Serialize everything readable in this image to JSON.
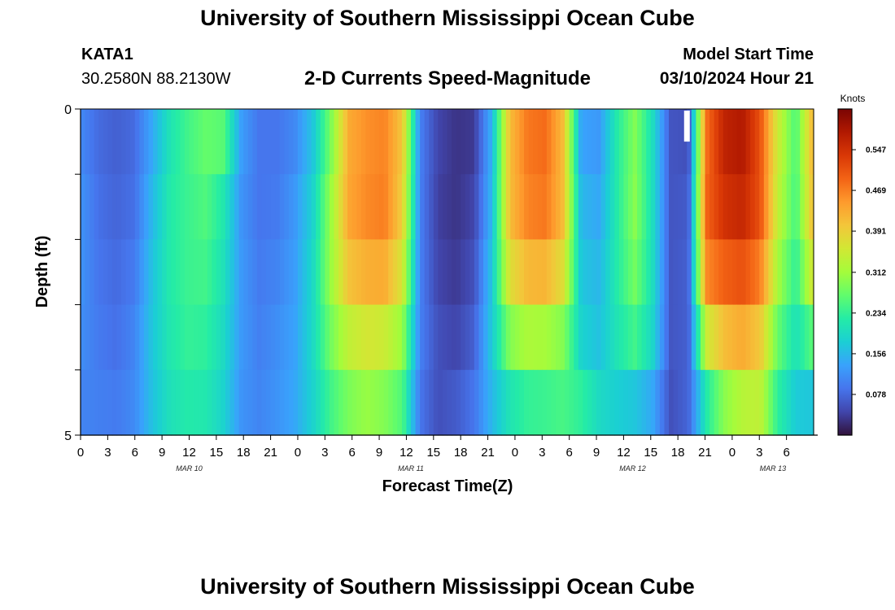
{
  "header": {
    "title": "University of Southern Mississippi Ocean Cube",
    "station": "KATA1",
    "coords": "30.2580N  88.2130W",
    "subtitle": "2-D Currents Speed-Magnitude",
    "start_label": "Model Start Time",
    "start_value": "03/10/2024 Hour 21"
  },
  "footer": {
    "title": "University of Southern Mississippi Ocean Cube"
  },
  "chart_data": {
    "type": "heatmap",
    "title": "2-D Currents Speed-Magnitude",
    "xlabel": "Forecast Time(Z)",
    "ylabel": "Depth (ft)",
    "colorbar_label": "Knots",
    "colorbar_ticks": [
      "0.547",
      "0.469",
      "0.391",
      "0.312",
      "0.234",
      "0.156",
      "0.078"
    ],
    "colorbar_tick_values": [
      0.547,
      0.469,
      0.391,
      0.312,
      0.234,
      0.156,
      0.078
    ],
    "colorbar_range": [
      0.0,
      0.625
    ],
    "colorscale": [
      "#30123b",
      "#4145ab",
      "#4675ed",
      "#39a2fc",
      "#1bcfd4",
      "#24eca6",
      "#61fc6c",
      "#a4fc3b",
      "#d1e834",
      "#f3c63a",
      "#fe9b2d",
      "#f36315",
      "#d93806",
      "#b11901",
      "#7a0403"
    ],
    "x_hours_range": [
      0,
      81
    ],
    "x_ticks": [
      "0",
      "3",
      "6",
      "9",
      "12",
      "15",
      "18",
      "21",
      "0",
      "3",
      "6",
      "9",
      "12",
      "15",
      "18",
      "21",
      "0",
      "3",
      "6",
      "9",
      "12",
      "15",
      "18",
      "21",
      "0",
      "3",
      "6"
    ],
    "date_labels": [
      {
        "label": "MAR 10",
        "hour": 12
      },
      {
        "label": "MAR 11",
        "hour": 36.5
      },
      {
        "label": "MAR 12",
        "hour": 61
      },
      {
        "label": "MAR 13",
        "hour": 76.5
      }
    ],
    "y_ticks": [
      "0",
      "",
      "",
      "",
      "",
      "5"
    ],
    "ylim": [
      0,
      5
    ],
    "depth_rows": 5,
    "missing_cells": [
      {
        "hour": 67,
        "depth_range": [
          0,
          0.5
        ]
      }
    ],
    "values": [
      [
        0.1,
        0.08,
        0.07,
        0.08,
        0.13,
        0.2,
        0.25,
        0.28,
        0.3,
        0.14,
        0.09,
        0.09,
        0.1,
        0.16,
        0.27,
        0.42,
        0.44,
        0.45,
        0.4,
        0.1,
        0.05,
        0.03,
        0.03,
        0.15,
        0.4,
        0.47,
        0.48,
        0.4,
        0.12,
        0.12,
        0.22,
        0.28,
        0.2,
        0.06,
        0.05,
        0.46,
        0.56,
        0.58,
        0.5,
        0.35,
        0.25,
        0.42
      ],
      [
        0.12,
        0.08,
        0.07,
        0.08,
        0.15,
        0.22,
        0.24,
        0.26,
        0.22,
        0.12,
        0.09,
        0.09,
        0.12,
        0.18,
        0.3,
        0.44,
        0.47,
        0.48,
        0.4,
        0.1,
        0.04,
        0.03,
        0.04,
        0.15,
        0.42,
        0.48,
        0.49,
        0.42,
        0.15,
        0.13,
        0.22,
        0.3,
        0.2,
        0.06,
        0.06,
        0.5,
        0.57,
        0.58,
        0.52,
        0.35,
        0.25,
        0.43
      ],
      [
        0.12,
        0.09,
        0.08,
        0.09,
        0.16,
        0.22,
        0.24,
        0.25,
        0.21,
        0.12,
        0.09,
        0.1,
        0.13,
        0.19,
        0.31,
        0.43,
        0.45,
        0.46,
        0.38,
        0.1,
        0.04,
        0.03,
        0.05,
        0.16,
        0.4,
        0.45,
        0.46,
        0.4,
        0.16,
        0.15,
        0.22,
        0.29,
        0.2,
        0.06,
        0.07,
        0.48,
        0.52,
        0.54,
        0.5,
        0.33,
        0.24,
        0.4
      ],
      [
        0.12,
        0.09,
        0.08,
        0.1,
        0.17,
        0.22,
        0.24,
        0.24,
        0.2,
        0.13,
        0.1,
        0.11,
        0.13,
        0.2,
        0.3,
        0.38,
        0.4,
        0.4,
        0.34,
        0.1,
        0.05,
        0.04,
        0.06,
        0.18,
        0.34,
        0.38,
        0.38,
        0.34,
        0.18,
        0.16,
        0.22,
        0.27,
        0.2,
        0.06,
        0.07,
        0.44,
        0.47,
        0.48,
        0.44,
        0.3,
        0.22,
        0.33
      ],
      [
        0.11,
        0.1,
        0.09,
        0.11,
        0.17,
        0.21,
        0.23,
        0.22,
        0.19,
        0.12,
        0.1,
        0.12,
        0.14,
        0.19,
        0.26,
        0.3,
        0.32,
        0.3,
        0.27,
        0.1,
        0.06,
        0.05,
        0.08,
        0.17,
        0.24,
        0.26,
        0.25,
        0.24,
        0.19,
        0.17,
        0.2,
        0.22,
        0.18,
        0.06,
        0.07,
        0.26,
        0.35,
        0.38,
        0.36,
        0.24,
        0.19,
        0.2
      ],
      [
        0.1,
        0.1,
        0.1,
        0.11,
        0.16,
        0.2,
        0.21,
        0.21,
        0.18,
        0.12,
        0.11,
        0.12,
        0.14,
        0.18,
        0.23,
        0.27,
        0.29,
        0.28,
        0.24,
        0.08,
        0.05,
        0.08,
        0.1,
        0.14,
        0.18,
        0.21,
        0.23,
        0.26,
        0.27,
        0.22,
        0.16,
        0.12,
        0.1,
        0.05,
        0.08,
        0.18,
        0.24,
        0.28,
        0.32,
        0.22,
        0.16,
        0.14
      ]
    ]
  }
}
